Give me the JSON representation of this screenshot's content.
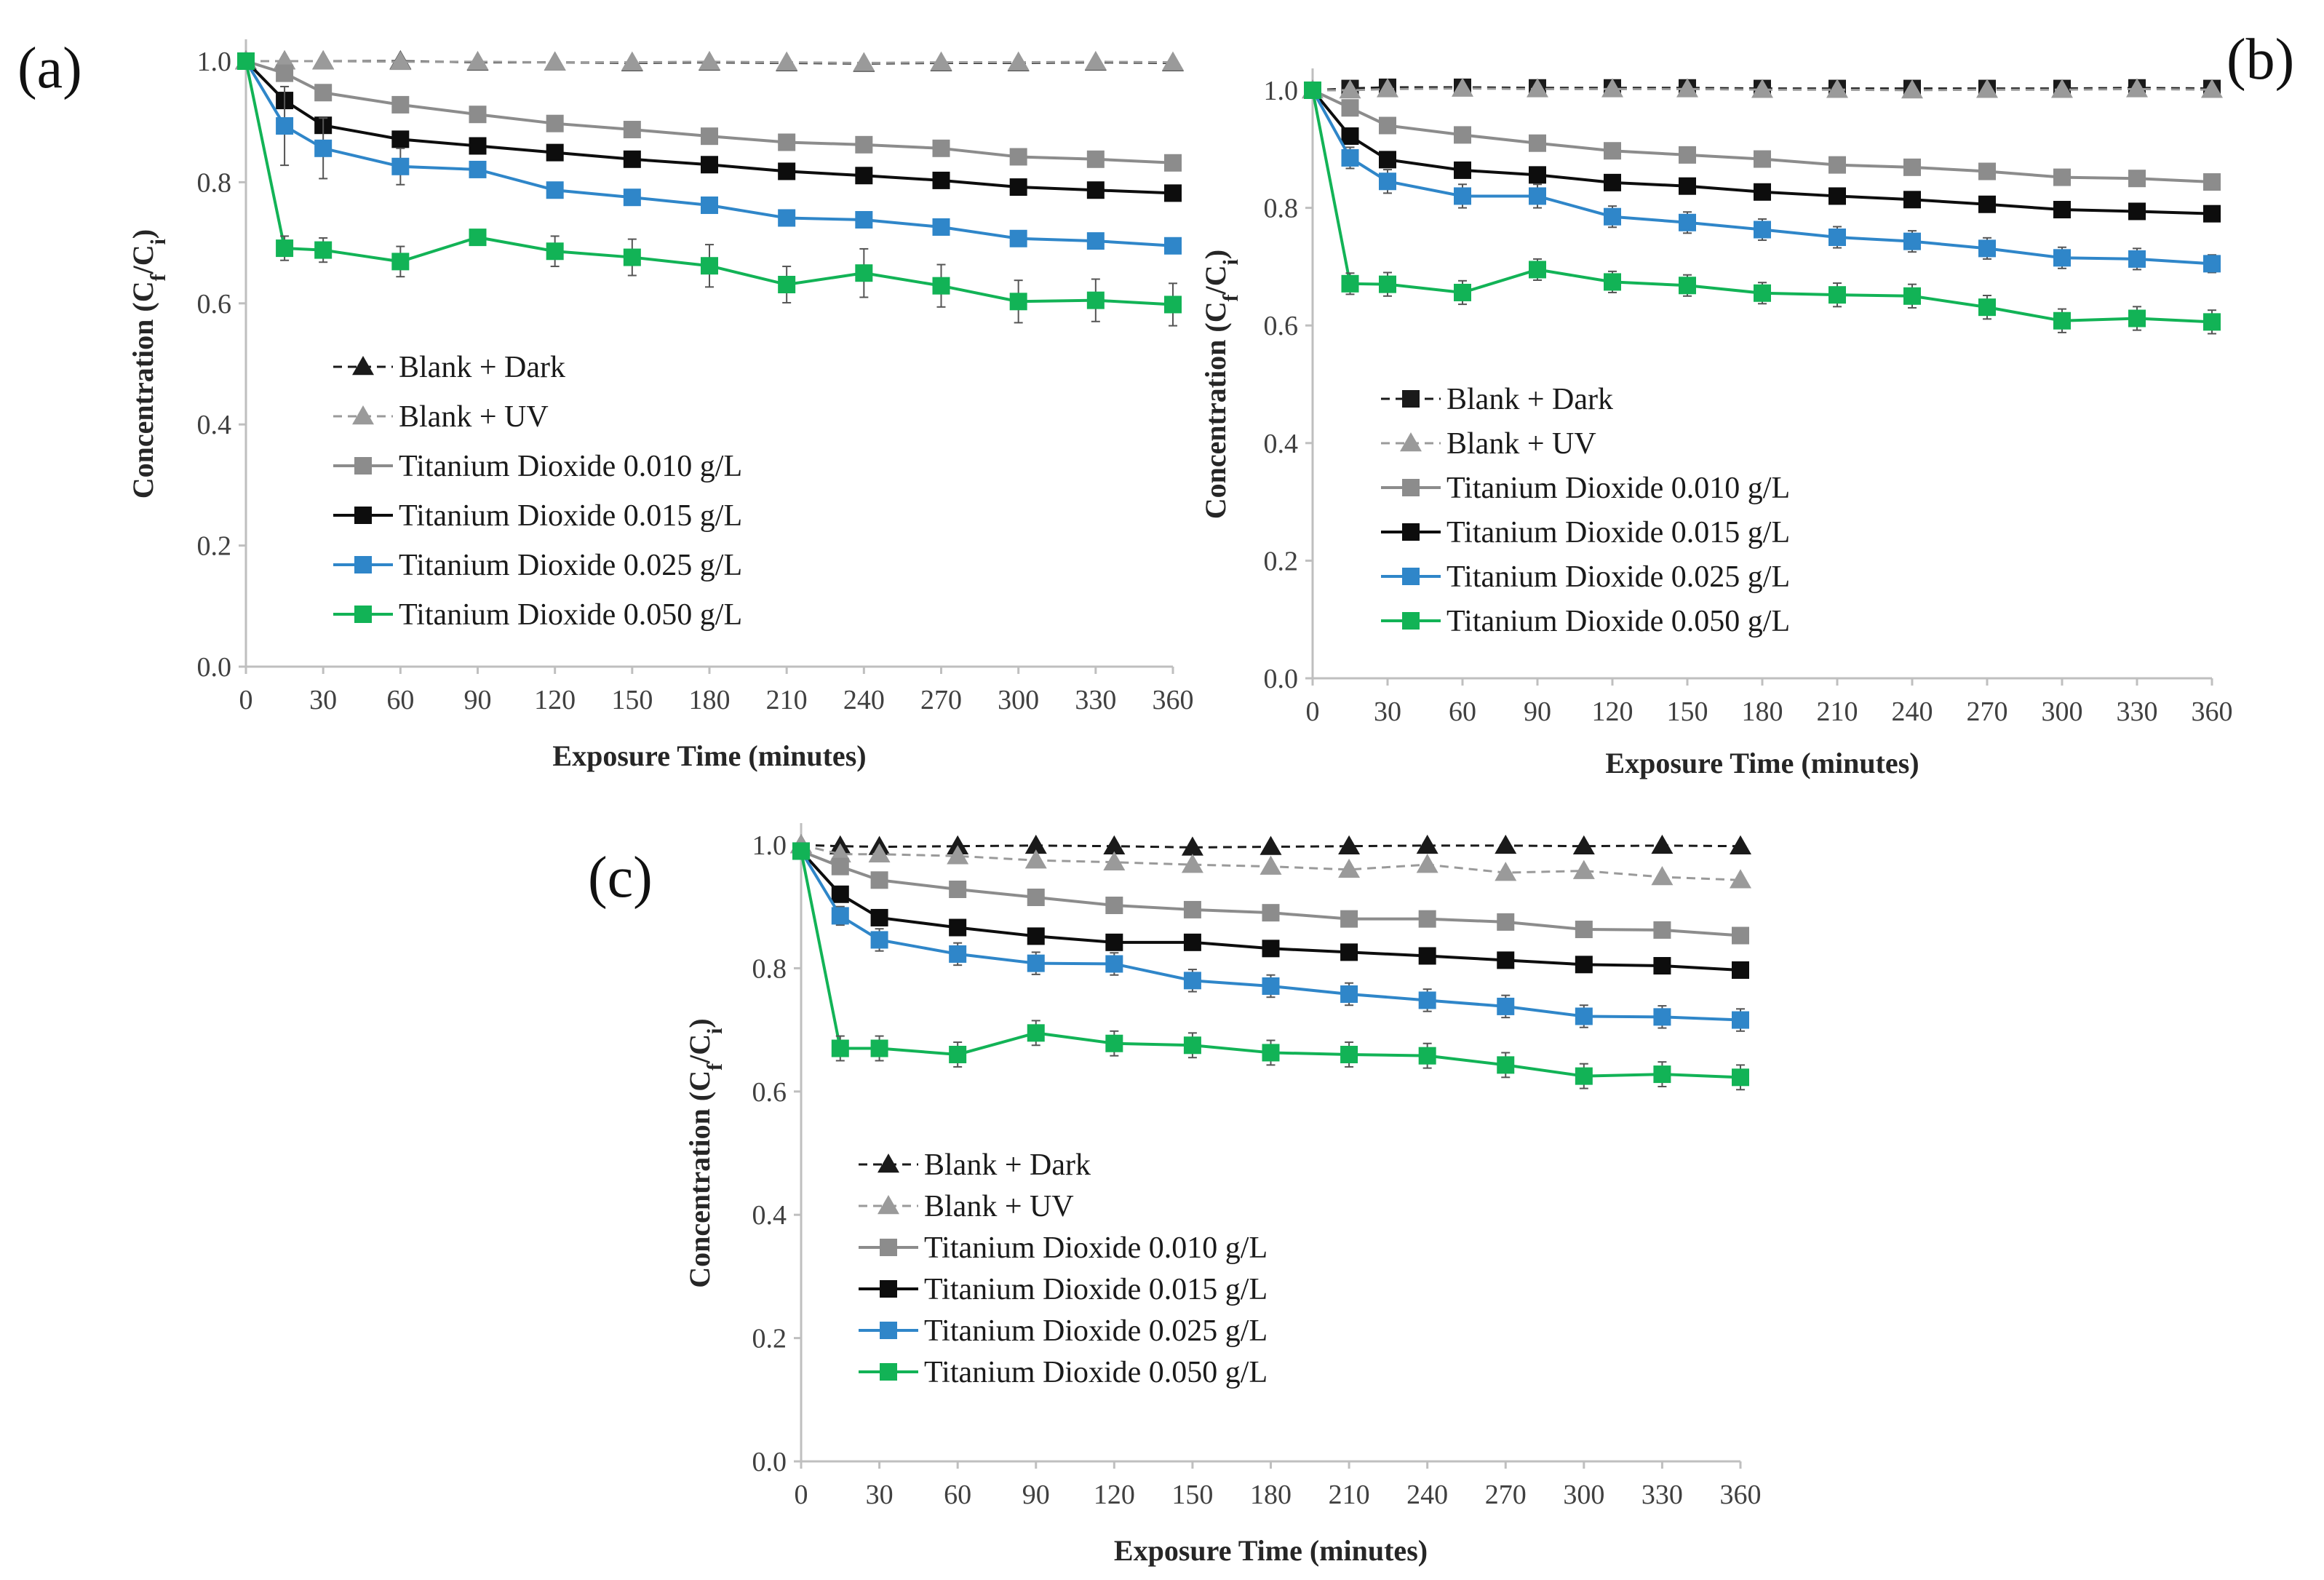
{
  "chart_data": [
    {
      "type": "line",
      "panel_label": "(a)",
      "xlabel": "Exposure Time (minutes)",
      "ylabel": {
        "main": "Concentration (C",
        "sub1": "f",
        "mid": "/C",
        "sub2": "i",
        "end": ")"
      },
      "xlim": [
        0,
        360
      ],
      "ylim": [
        0,
        1.0
      ],
      "xticks": [
        0,
        30,
        60,
        90,
        120,
        150,
        180,
        210,
        240,
        270,
        300,
        330,
        360
      ],
      "yticks": [
        "0.0",
        "0.2",
        "0.4",
        "0.6",
        "0.8",
        "1.0"
      ],
      "legend_position": "center-left",
      "series": [
        {
          "name": "Blank + Dark",
          "color": "#1a1a1a",
          "dash": true,
          "marker": "triangle",
          "x": [
            0,
            15,
            30,
            60,
            90,
            120,
            150,
            180,
            210,
            240,
            270,
            300,
            330,
            360
          ],
          "y": [
            1.0,
            1.0,
            1.0,
            1.0,
            0.998,
            0.998,
            0.997,
            0.998,
            0.997,
            0.996,
            0.997,
            0.997,
            0.998,
            0.997
          ]
        },
        {
          "name": "Blank + UV",
          "color": "#9a9a9a",
          "dash": true,
          "marker": "triangle",
          "x": [
            0,
            15,
            30,
            60,
            90,
            120,
            150,
            180,
            210,
            240,
            270,
            300,
            330,
            360
          ],
          "y": [
            1.0,
            1.0,
            1.0,
            0.999,
            0.999,
            0.998,
            0.998,
            0.999,
            0.998,
            0.997,
            0.998,
            0.998,
            0.999,
            0.998
          ]
        },
        {
          "name": "Titanium Dioxide 0.010 g/L",
          "color": "#8c8c8c",
          "dash": false,
          "marker": "square",
          "x": [
            0,
            15,
            30,
            60,
            90,
            120,
            150,
            180,
            210,
            240,
            270,
            300,
            330,
            360
          ],
          "y": [
            1.0,
            0.98,
            0.948,
            0.928,
            0.912,
            0.897,
            0.887,
            0.876,
            0.866,
            0.862,
            0.856,
            0.842,
            0.838,
            0.832
          ],
          "err": [
            0,
            0.008,
            0.01,
            0.007,
            0.007,
            0.007,
            0.007,
            0.007,
            0.007,
            0.007,
            0.007,
            0.007,
            0.007,
            0.007
          ]
        },
        {
          "name": "Titanium Dioxide 0.015 g/L",
          "color": "#0d0d0d",
          "dash": false,
          "marker": "square",
          "x": [
            0,
            15,
            30,
            60,
            90,
            120,
            150,
            180,
            210,
            240,
            270,
            300,
            330,
            360
          ],
          "y": [
            1.0,
            0.935,
            0.894,
            0.871,
            0.86,
            0.849,
            0.838,
            0.829,
            0.818,
            0.811,
            0.803,
            0.792,
            0.787,
            0.782
          ],
          "err": [
            0,
            0.01,
            0.01,
            0.01,
            0.01,
            0.01,
            0.01,
            0.01,
            0.01,
            0.01,
            0.01,
            0.01,
            0.01,
            0.01
          ]
        },
        {
          "name": "Titanium Dioxide 0.025 g/L",
          "color": "#2f86c9",
          "dash": false,
          "marker": "square",
          "x": [
            0,
            15,
            30,
            60,
            90,
            120,
            150,
            180,
            210,
            240,
            270,
            300,
            330,
            360
          ],
          "y": [
            1.0,
            0.893,
            0.856,
            0.826,
            0.821,
            0.787,
            0.775,
            0.762,
            0.741,
            0.738,
            0.726,
            0.707,
            0.703,
            0.695
          ],
          "err": [
            0,
            0.065,
            0.05,
            0.03,
            0.012,
            0.012,
            0.012,
            0.012,
            0.01,
            0.01,
            0.01,
            0.01,
            0.01,
            0.008
          ]
        },
        {
          "name": "Titanium Dioxide 0.050 g/L",
          "color": "#12b356",
          "dash": false,
          "marker": "square",
          "x": [
            0,
            15,
            30,
            60,
            90,
            120,
            150,
            180,
            210,
            240,
            270,
            300,
            330,
            360
          ],
          "y": [
            1.0,
            0.691,
            0.688,
            0.669,
            0.709,
            0.686,
            0.676,
            0.662,
            0.631,
            0.65,
            0.629,
            0.603,
            0.605,
            0.598
          ],
          "err": [
            0,
            0.02,
            0.02,
            0.025,
            0.01,
            0.025,
            0.03,
            0.035,
            0.03,
            0.04,
            0.035,
            0.035,
            0.035,
            0.035
          ]
        }
      ]
    },
    {
      "type": "line",
      "panel_label": "(b)",
      "xlabel": "Exposure Time (minutes)",
      "ylabel": {
        "main": "Concentration (C",
        "sub1": "f",
        "mid": "/C",
        "sub2": "i",
        "end": ")"
      },
      "xlim": [
        0,
        360
      ],
      "ylim": [
        0,
        1.0
      ],
      "xticks": [
        0,
        30,
        60,
        90,
        120,
        150,
        180,
        210,
        240,
        270,
        300,
        330,
        360
      ],
      "yticks": [
        "0.0",
        "0.2",
        "0.4",
        "0.6",
        "0.8",
        "1.0"
      ],
      "legend_position": "center-left",
      "series": [
        {
          "name": "Blank + Dark",
          "color": "#1a1a1a",
          "dash": true,
          "marker": "square",
          "x": [
            0,
            15,
            30,
            60,
            90,
            120,
            150,
            180,
            210,
            240,
            270,
            300,
            330,
            360
          ],
          "y": [
            1.0,
            1.003,
            1.005,
            1.005,
            1.004,
            1.004,
            1.004,
            1.003,
            1.003,
            1.003,
            1.003,
            1.003,
            1.004,
            1.003
          ]
        },
        {
          "name": "Blank + UV",
          "color": "#9a9a9a",
          "dash": true,
          "marker": "triangle",
          "x": [
            0,
            15,
            30,
            60,
            90,
            120,
            150,
            180,
            210,
            240,
            270,
            300,
            330,
            360
          ],
          "y": [
            1.0,
            1.0,
            1.002,
            1.003,
            1.002,
            1.002,
            1.002,
            1.001,
            1.001,
            1.0,
            1.001,
            1.001,
            1.002,
            1.001
          ]
        },
        {
          "name": "Titanium Dioxide 0.010 g/L",
          "color": "#8c8c8c",
          "dash": false,
          "marker": "square",
          "x": [
            0,
            15,
            30,
            60,
            90,
            120,
            150,
            180,
            210,
            240,
            270,
            300,
            330,
            360
          ],
          "y": [
            1.0,
            0.97,
            0.94,
            0.924,
            0.91,
            0.897,
            0.89,
            0.883,
            0.873,
            0.869,
            0.862,
            0.852,
            0.85,
            0.844
          ],
          "err": [
            0,
            0.008,
            0.007,
            0.007,
            0.007,
            0.007,
            0.007,
            0.007,
            0.007,
            0.007,
            0.007,
            0.007,
            0.007,
            0.007
          ]
        },
        {
          "name": "Titanium Dioxide 0.015 g/L",
          "color": "#0d0d0d",
          "dash": false,
          "marker": "square",
          "x": [
            0,
            15,
            30,
            60,
            90,
            120,
            150,
            180,
            210,
            240,
            270,
            300,
            330,
            360
          ],
          "y": [
            1.0,
            0.922,
            0.882,
            0.864,
            0.856,
            0.843,
            0.837,
            0.827,
            0.82,
            0.814,
            0.806,
            0.797,
            0.794,
            0.79
          ],
          "err": [
            0,
            0.01,
            0.01,
            0.01,
            0.01,
            0.01,
            0.01,
            0.01,
            0.01,
            0.01,
            0.01,
            0.01,
            0.01,
            0.01
          ]
        },
        {
          "name": "Titanium Dioxide 0.025 g/L",
          "color": "#2f86c9",
          "dash": false,
          "marker": "square",
          "x": [
            0,
            15,
            30,
            60,
            90,
            120,
            150,
            180,
            210,
            240,
            270,
            300,
            330,
            360
          ],
          "y": [
            1.0,
            0.885,
            0.845,
            0.82,
            0.82,
            0.785,
            0.775,
            0.763,
            0.75,
            0.743,
            0.731,
            0.715,
            0.713,
            0.705
          ],
          "err": [
            0,
            0.018,
            0.02,
            0.02,
            0.02,
            0.018,
            0.018,
            0.018,
            0.018,
            0.018,
            0.018,
            0.018,
            0.018,
            0.015
          ]
        },
        {
          "name": "Titanium Dioxide 0.050 g/L",
          "color": "#12b356",
          "dash": false,
          "marker": "square",
          "x": [
            0,
            15,
            30,
            60,
            90,
            120,
            150,
            180,
            210,
            240,
            270,
            300,
            330,
            360
          ],
          "y": [
            1.0,
            0.671,
            0.67,
            0.656,
            0.695,
            0.674,
            0.668,
            0.655,
            0.652,
            0.65,
            0.631,
            0.608,
            0.612,
            0.606
          ],
          "err": [
            0,
            0.018,
            0.02,
            0.02,
            0.018,
            0.018,
            0.018,
            0.018,
            0.02,
            0.02,
            0.02,
            0.02,
            0.02,
            0.02
          ]
        }
      ]
    },
    {
      "type": "line",
      "panel_label": "(c)",
      "xlabel": "Exposure Time (minutes)",
      "ylabel": {
        "main": "Concentration (C",
        "sub1": "f",
        "mid": "/C",
        "sub2": "i",
        "end": ")"
      },
      "xlim": [
        0,
        360
      ],
      "ylim": [
        0,
        1.0
      ],
      "xticks": [
        0,
        30,
        60,
        90,
        120,
        150,
        180,
        210,
        240,
        270,
        300,
        330,
        360
      ],
      "yticks": [
        "0.0",
        "0.2",
        "0.4",
        "0.6",
        "0.8",
        "1.0"
      ],
      "legend_position": "center-left",
      "series": [
        {
          "name": "Blank + Dark",
          "color": "#1a1a1a",
          "dash": true,
          "marker": "triangle",
          "x": [
            0,
            15,
            30,
            60,
            90,
            120,
            150,
            180,
            210,
            240,
            270,
            300,
            330,
            360
          ],
          "y": [
            1.0,
            0.998,
            0.997,
            0.998,
            0.999,
            0.998,
            0.996,
            0.997,
            0.998,
            0.999,
            0.999,
            0.998,
            0.999,
            0.998
          ]
        },
        {
          "name": "Blank + UV",
          "color": "#9a9a9a",
          "dash": true,
          "marker": "triangle",
          "x": [
            0,
            15,
            30,
            60,
            90,
            120,
            150,
            180,
            210,
            240,
            270,
            300,
            330,
            360
          ],
          "y": [
            1.0,
            0.985,
            0.985,
            0.982,
            0.975,
            0.972,
            0.968,
            0.965,
            0.96,
            0.968,
            0.955,
            0.958,
            0.948,
            0.943
          ]
        },
        {
          "name": "Titanium Dioxide 0.010 g/L",
          "color": "#8c8c8c",
          "dash": false,
          "marker": "square",
          "x": [
            0,
            15,
            30,
            60,
            90,
            120,
            150,
            180,
            210,
            240,
            270,
            300,
            330,
            360
          ],
          "y": [
            0.99,
            0.965,
            0.943,
            0.928,
            0.915,
            0.902,
            0.895,
            0.89,
            0.88,
            0.88,
            0.875,
            0.863,
            0.862,
            0.853
          ],
          "err": [
            0,
            0.008,
            0.007,
            0.007,
            0.007,
            0.007,
            0.007,
            0.007,
            0.007,
            0.007,
            0.007,
            0.007,
            0.007,
            0.007
          ]
        },
        {
          "name": "Titanium Dioxide 0.015 g/L",
          "color": "#0d0d0d",
          "dash": false,
          "marker": "square",
          "x": [
            0,
            15,
            30,
            60,
            90,
            120,
            150,
            180,
            210,
            240,
            270,
            300,
            330,
            360
          ],
          "y": [
            0.99,
            0.92,
            0.882,
            0.866,
            0.852,
            0.842,
            0.842,
            0.832,
            0.826,
            0.82,
            0.813,
            0.806,
            0.804,
            0.797
          ],
          "err": [
            0,
            0.01,
            0.01,
            0.01,
            0.01,
            0.01,
            0.01,
            0.01,
            0.01,
            0.01,
            0.01,
            0.01,
            0.01,
            0.01
          ]
        },
        {
          "name": "Titanium Dioxide 0.025 g/L",
          "color": "#2f86c9",
          "dash": false,
          "marker": "square",
          "x": [
            0,
            15,
            30,
            60,
            90,
            120,
            150,
            180,
            210,
            240,
            270,
            300,
            330,
            360
          ],
          "y": [
            0.99,
            0.885,
            0.846,
            0.823,
            0.808,
            0.807,
            0.78,
            0.771,
            0.758,
            0.748,
            0.738,
            0.722,
            0.721,
            0.716
          ],
          "err": [
            0,
            0.015,
            0.018,
            0.018,
            0.018,
            0.018,
            0.018,
            0.018,
            0.018,
            0.018,
            0.018,
            0.018,
            0.018,
            0.018
          ]
        },
        {
          "name": "Titanium Dioxide 0.050 g/L",
          "color": "#12b356",
          "dash": false,
          "marker": "square",
          "x": [
            0,
            15,
            30,
            60,
            90,
            120,
            150,
            180,
            210,
            240,
            270,
            300,
            330,
            360
          ],
          "y": [
            0.99,
            0.67,
            0.67,
            0.66,
            0.695,
            0.678,
            0.675,
            0.663,
            0.66,
            0.658,
            0.643,
            0.625,
            0.628,
            0.623
          ],
          "err": [
            0,
            0.02,
            0.02,
            0.02,
            0.02,
            0.02,
            0.02,
            0.02,
            0.02,
            0.02,
            0.02,
            0.02,
            0.02,
            0.02
          ]
        }
      ]
    }
  ]
}
